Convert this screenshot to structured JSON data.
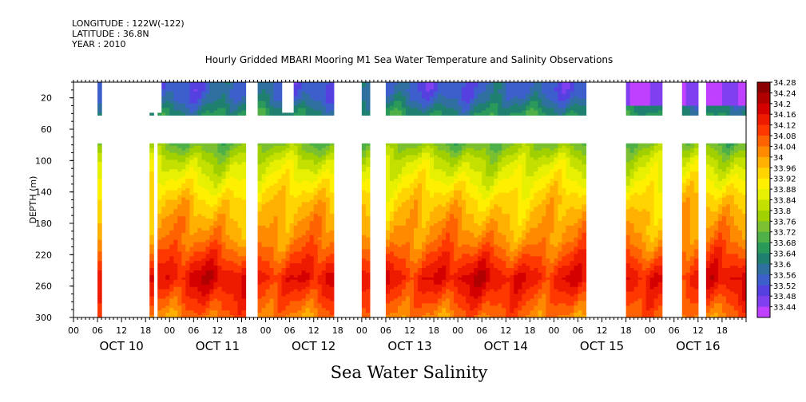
{
  "header": {
    "longitude": "LONGITUDE : 122W(-122)",
    "latitude": "LATITUDE : 36.8N",
    "year": "YEAR : 2010"
  },
  "chart_data": {
    "type": "heatmap",
    "title": "Hourly Gridded MBARI Mooring M1 Sea Water Temperature and Salinity Observations",
    "variable_label": "Sea Water Salinity",
    "ylabel": "DEPTH (m)",
    "y_axis": {
      "range": [
        300,
        0
      ],
      "tick_values": [
        20,
        60,
        100,
        140,
        180,
        220,
        260,
        300
      ],
      "tick_labels": [
        "20",
        "60",
        "100",
        "140",
        "180",
        "220",
        "260",
        "300"
      ]
    },
    "x_axis": {
      "range_hours": [
        0,
        168
      ],
      "hour_tick_labels": [
        "00",
        "06",
        "12",
        "18"
      ],
      "day_labels": [
        "OCT 10",
        "OCT 11",
        "OCT 12",
        "OCT 13",
        "OCT 14",
        "OCT 15",
        "OCT 16"
      ]
    },
    "colorbar": {
      "levels": [
        34.28,
        34.24,
        34.2,
        34.16,
        34.12,
        34.08,
        34.04,
        34,
        33.96,
        33.92,
        33.88,
        33.84,
        33.8,
        33.76,
        33.72,
        33.68,
        33.64,
        33.6,
        33.56,
        33.52,
        33.48,
        33.44
      ],
      "labels": [
        "34.28",
        "34.24",
        "34.2",
        "34.16",
        "34.12",
        "34.08",
        "34.04",
        "34",
        "33.96",
        "33.92",
        "33.88",
        "33.84",
        "33.8",
        "33.76",
        "33.72",
        "33.68",
        "33.64",
        "33.6",
        "33.56",
        "33.52",
        "33.48",
        "33.44"
      ],
      "colors": [
        "#8b0000",
        "#b00000",
        "#d40000",
        "#ee1b00",
        "#ff3800",
        "#ff6200",
        "#ff8a00",
        "#ffb000",
        "#ffd400",
        "#fff000",
        "#e6f000",
        "#c4e000",
        "#a0d000",
        "#7ac030",
        "#4fb048",
        "#2a9a5a",
        "#1f8070",
        "#3070a0",
        "#3d5fcc",
        "#5540e0",
        "#8040f0",
        "#c040ff"
      ]
    },
    "data_depths_m": [
      10,
      20,
      40,
      80,
      100,
      150,
      200,
      250,
      300
    ],
    "data_gaps_hours": [
      [
        0,
        6
      ],
      [
        7,
        19
      ],
      [
        20,
        21
      ],
      [
        43,
        46
      ],
      [
        65,
        72
      ],
      [
        74,
        78
      ],
      [
        128,
        138
      ],
      [
        147,
        152
      ],
      [
        156,
        158
      ]
    ],
    "upper_gaps_hours": [
      [
        19,
        20
      ],
      [
        21,
        22
      ],
      [
        52,
        55
      ]
    ],
    "depth_profile_psu": [
      33.58,
      33.6,
      33.68,
      33.78,
      33.86,
      33.98,
      34.06,
      34.2,
      34.08
    ],
    "surface_fresh_window_hours": [
      130,
      168
    ],
    "surface_fresh_value_psu": 33.47
  }
}
